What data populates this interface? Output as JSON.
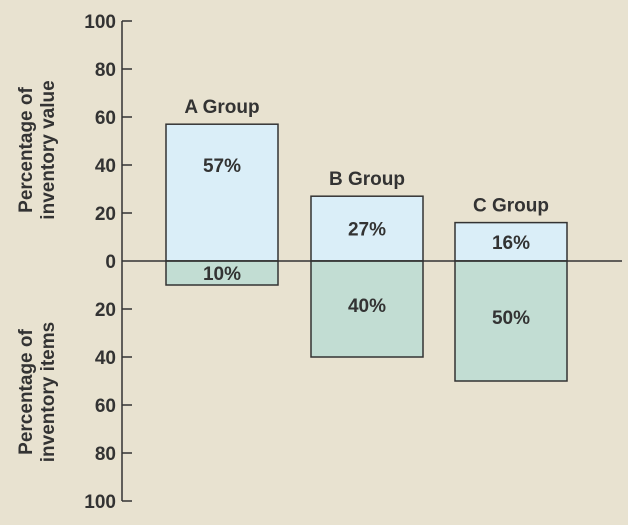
{
  "chart_data": {
    "type": "bar",
    "categories": [
      "A Group",
      "B Group",
      "C Group"
    ],
    "series": [
      {
        "name": "",
        "values": [
          57,
          27,
          16
        ],
        "labels": [
          "57%",
          "27%",
          "16%"
        ],
        "direction": "up"
      },
      {
        "name": "",
        "values": [
          10,
          40,
          50
        ],
        "labels": [
          "10%",
          "40%",
          "50%"
        ],
        "direction": "down"
      }
    ],
    "ylabel_top": [
      "Percentage of",
      "inventory value"
    ],
    "ylabel_bottom": [
      "Percentage of",
      "inventory items"
    ],
    "ylim": [
      -100,
      100
    ],
    "ticks_top": [
      "100",
      "80",
      "60",
      "40",
      "20",
      "0"
    ],
    "ticks_bottom": [
      "20",
      "40",
      "60",
      "80",
      "100"
    ],
    "grid": false
  },
  "colors": {
    "background": "#e8e2d0",
    "value_bar": "#daeef8",
    "items_bar": "#c2ddd3",
    "stroke": "#333333"
  }
}
